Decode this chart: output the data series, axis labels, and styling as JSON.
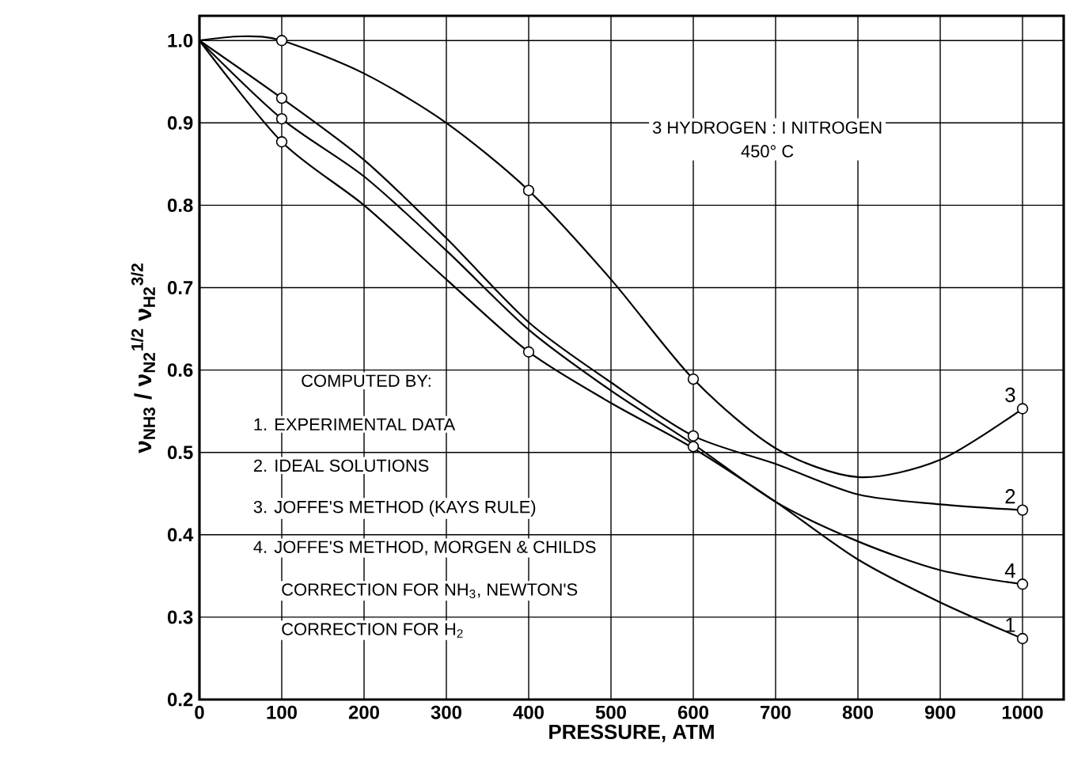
{
  "chart_data": {
    "type": "line",
    "xlabel": "PRESSURE, ATM",
    "ylabel": "ν$_{NH3}$ / ν$_{N2}$$^{1/2}$ ν$_{H2}$$^{3/2}$",
    "xlim": [
      0,
      1050
    ],
    "ylim": [
      0.2,
      1.03
    ],
    "xticks": [
      0,
      100,
      200,
      300,
      400,
      500,
      600,
      700,
      800,
      900,
      1000
    ],
    "yticks": [
      0.2,
      0.3,
      0.4,
      0.5,
      0.6,
      0.7,
      0.8,
      0.9,
      {
        "value": 1,
        "label": "1.0"
      }
    ],
    "grid": true,
    "series": [
      {
        "name": "1",
        "color": "#000000",
        "marker": "none",
        "x": [
          0,
          100,
          200,
          300,
          400,
          500,
          600,
          700,
          800,
          900,
          1000
        ],
        "values": [
          1.0,
          0.877,
          0.8,
          0.71,
          0.622,
          0.56,
          0.505,
          0.44,
          0.37,
          0.318,
          0.274
        ]
      },
      {
        "name": "2",
        "color": "#000000",
        "marker": "none",
        "x": [
          0,
          100,
          200,
          300,
          400,
          500,
          600,
          700,
          800,
          900,
          1000
        ],
        "values": [
          1.0,
          0.93,
          0.855,
          0.76,
          0.658,
          0.585,
          0.52,
          0.486,
          0.449,
          0.437,
          0.43
        ]
      },
      {
        "name": "3",
        "color": "#000000",
        "marker": "none",
        "x": [
          0,
          50,
          100,
          200,
          300,
          400,
          500,
          600,
          700,
          800,
          900,
          1000
        ],
        "values": [
          1.0,
          1.005,
          1.0,
          0.96,
          0.9,
          0.818,
          0.71,
          0.589,
          0.505,
          0.47,
          0.491,
          0.553
        ]
      },
      {
        "name": "4",
        "color": "#000000",
        "marker": "none",
        "x": [
          0,
          100,
          200,
          300,
          400,
          500,
          600,
          700,
          800,
          900,
          1000
        ],
        "values": [
          1.0,
          0.905,
          0.835,
          0.745,
          0.649,
          0.575,
          0.51,
          0.44,
          0.392,
          0.357,
          0.34
        ]
      },
      {
        "type": "scatter",
        "color": "#000000",
        "marker": "circle",
        "x": [
          100,
          400,
          600,
          1000
        ],
        "values": [
          0.877,
          0.622,
          0.507,
          0.274
        ]
      },
      {
        "type": "scatter",
        "color": "#000000",
        "marker": "circle",
        "x": [
          100,
          600,
          1000
        ],
        "values": [
          0.93,
          0.52,
          0.43
        ]
      },
      {
        "type": "scatter",
        "color": "#000000",
        "marker": "circle",
        "x": [
          100,
          400,
          600,
          1000
        ],
        "values": [
          1.0,
          0.818,
          0.589,
          0.553
        ]
      },
      {
        "type": "scatter",
        "color": "#000000",
        "marker": "circle",
        "x": [
          100,
          1000
        ],
        "values": [
          0.905,
          0.34
        ]
      }
    ],
    "annotations": [
      "3 HYDROGEN : I NITROGEN",
      "450° C",
      "COMPUTED BY:",
      "1. EXPERIMENTAL DATA",
      "2. IDEAL SOLUTIONS",
      "3. JOFFE'S METHOD (KAYS RULE)",
      "4. JOFFE'S METHOD, MORGEN & CHILDS",
      "CORRECTION FOR NH$_{3}$, NEWTON'S",
      "CORRECTION FOR H$_{2}$"
    ]
  }
}
